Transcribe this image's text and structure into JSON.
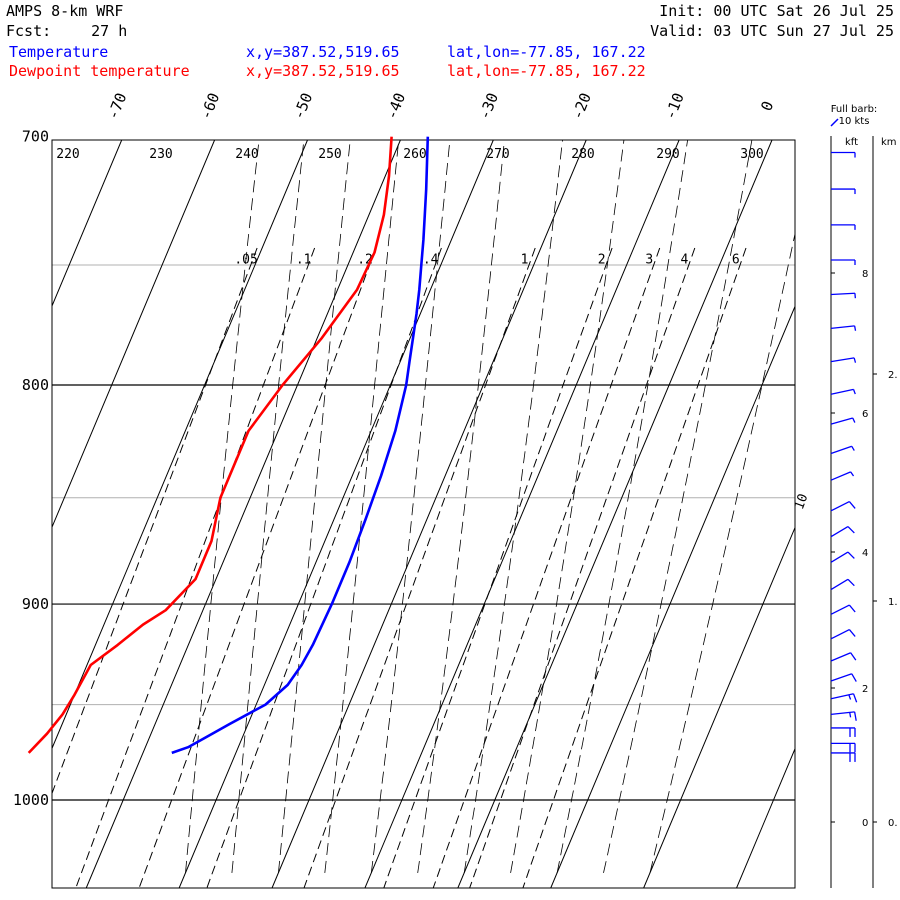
{
  "header": {
    "model": "AMPS 8-km WRF",
    "fcst_label": "Fcst:",
    "fcst_value": "27 h",
    "init_label": "Init:",
    "init_value": "00 UTC Sat 26 Jul 25",
    "valid_label": "Valid:",
    "valid_value": "03 UTC Sun 27 Jul 25"
  },
  "legend": [
    {
      "label": "Temperature",
      "xy": "x,y=387.52,519.65",
      "latlon": "lat,lon=-77.85, 167.22",
      "color": "#0000ff"
    },
    {
      "label": "Dewpoint temperature",
      "xy": "x,y=387.52,519.65",
      "latlon": "lat,lon=-77.85, 167.22",
      "color": "#ff0000"
    }
  ],
  "wind_key": {
    "line1": "Full barb:",
    "line2": "10 kts"
  },
  "height_units": {
    "kft": "kft",
    "km": "km"
  },
  "colors": {
    "temperature": "#0000ff",
    "dewpoint": "#ff0000",
    "grid": "#000000",
    "gray_grid": "#b0b0b0"
  },
  "chart_data": {
    "type": "line",
    "subtype": "skew-T log-p sounding",
    "y_axis": {
      "quantity": "pressure (hPa)",
      "scale": "log",
      "range": [
        1040,
        700
      ],
      "tick_labels": [
        "700",
        "800",
        "900",
        "1000"
      ]
    },
    "x_axis": {
      "quantity": "temperature (°C)",
      "skewed": true,
      "tick_labels": [
        "-70",
        "-60",
        "-50",
        "-40",
        "-30",
        "-20",
        "-10",
        "0"
      ]
    },
    "dry_adiabat_labels": [
      "220",
      "230",
      "240",
      "250",
      "260",
      "270",
      "280",
      "290",
      "300"
    ],
    "mixing_ratio_labels": [
      ".05",
      ".1",
      ".2",
      ".4",
      "1",
      "2",
      "3",
      "4",
      "6"
    ],
    "height_kft_labels": [
      "0",
      "2",
      "4",
      "6",
      "8"
    ],
    "height_km_labels": [
      "0.",
      "1.",
      "2."
    ],
    "side_label": "10",
    "series": [
      {
        "name": "Temperature",
        "color": "#0000ff",
        "p": [
          975,
          972,
          966,
          960,
          950,
          940,
          930,
          920,
          900,
          880,
          860,
          840,
          820,
          800,
          790,
          780,
          770,
          760,
          750,
          740,
          730,
          720,
          710,
          700
        ],
        "t": [
          -36.9,
          -35.4,
          -33.7,
          -32.0,
          -29.0,
          -27.5,
          -26.9,
          -26.6,
          -26.4,
          -26.4,
          -26.6,
          -26.9,
          -27.4,
          -28.3,
          -29.0,
          -29.7,
          -30.4,
          -31.2,
          -32.1,
          -33.0,
          -34.0,
          -35.0,
          -36.1,
          -37.2
        ]
      },
      {
        "name": "Dewpoint temperature",
        "color": "#ff0000",
        "p": [
          975,
          965,
          955,
          945,
          930,
          920,
          910,
          903,
          888,
          870,
          850,
          820,
          800,
          780,
          760,
          745,
          730,
          715,
          700
        ],
        "t": [
          -52.3,
          -51.2,
          -50.4,
          -50.0,
          -49.6,
          -47.6,
          -45.8,
          -44.0,
          -42.2,
          -42.2,
          -43.2,
          -43.2,
          -41.6,
          -39.5,
          -37.9,
          -37.7,
          -38.4,
          -39.6,
          -41.1
        ]
      }
    ],
    "wind_barbs_kts": [
      {
        "p": 975,
        "speed": 20,
        "dir": 270
      },
      {
        "p": 970,
        "speed": 20,
        "dir": 270
      },
      {
        "p": 962,
        "speed": 20,
        "dir": 270
      },
      {
        "p": 955,
        "speed": 15,
        "dir": 260
      },
      {
        "p": 947,
        "speed": 15,
        "dir": 250
      },
      {
        "p": 938,
        "speed": 10,
        "dir": 240
      },
      {
        "p": 928,
        "speed": 10,
        "dir": 235
      },
      {
        "p": 917,
        "speed": 10,
        "dir": 230
      },
      {
        "p": 905,
        "speed": 10,
        "dir": 230
      },
      {
        "p": 893,
        "speed": 10,
        "dir": 225
      },
      {
        "p": 880,
        "speed": 10,
        "dir": 225
      },
      {
        "p": 868,
        "speed": 10,
        "dir": 225
      },
      {
        "p": 856,
        "speed": 10,
        "dir": 230
      },
      {
        "p": 842,
        "speed": 5,
        "dir": 235
      },
      {
        "p": 830,
        "speed": 5,
        "dir": 240
      },
      {
        "p": 817,
        "speed": 5,
        "dir": 245
      },
      {
        "p": 804,
        "speed": 5,
        "dir": 250
      },
      {
        "p": 790,
        "speed": 5,
        "dir": 255
      },
      {
        "p": 776,
        "speed": 5,
        "dir": 260
      },
      {
        "p": 762,
        "speed": 5,
        "dir": 265
      },
      {
        "p": 748,
        "speed": 5,
        "dir": 270
      },
      {
        "p": 734,
        "speed": 5,
        "dir": 270
      },
      {
        "p": 720,
        "speed": 5,
        "dir": 270
      },
      {
        "p": 706,
        "speed": 5,
        "dir": 270
      }
    ]
  }
}
